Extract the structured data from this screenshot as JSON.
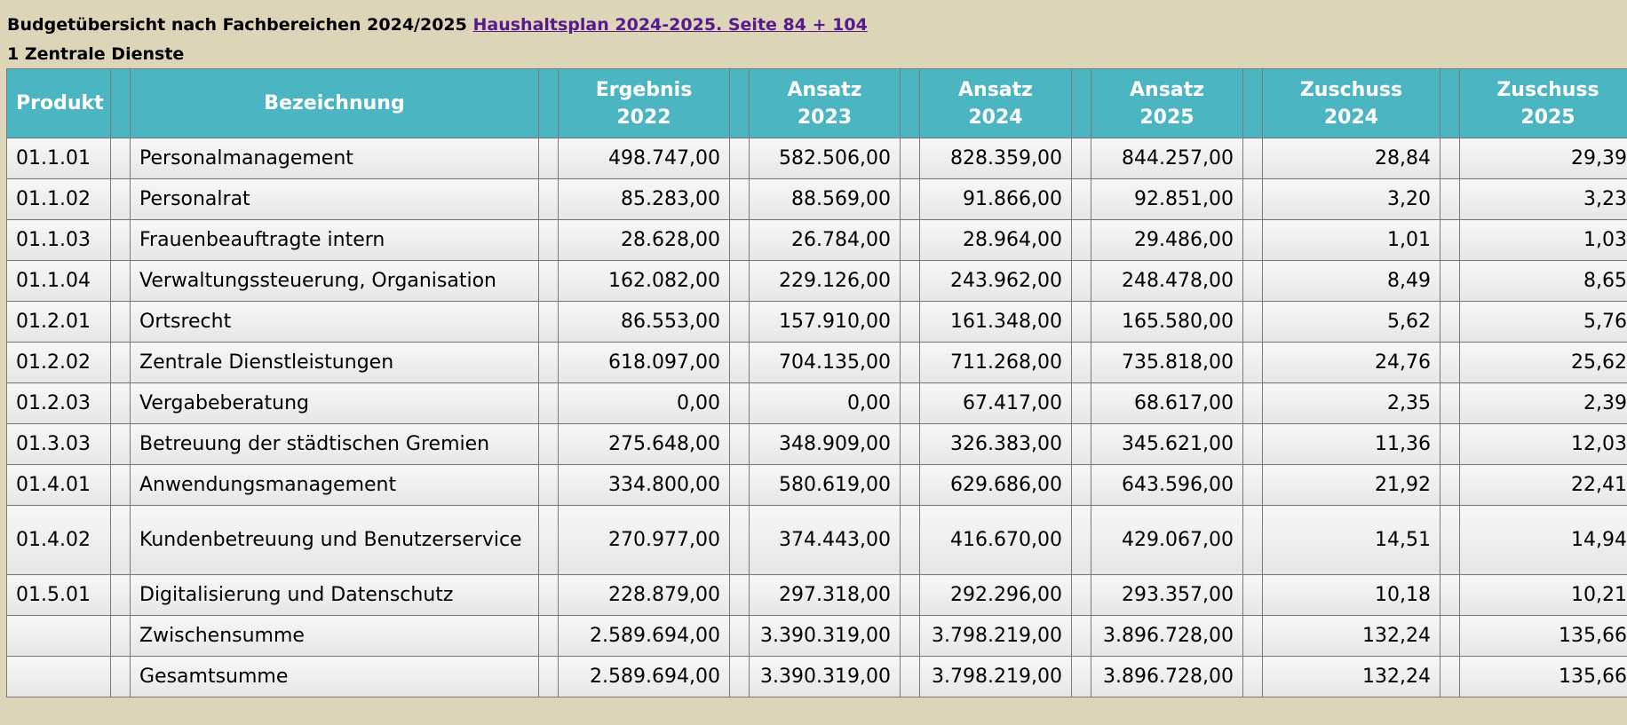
{
  "header": {
    "title": "Budgetübersicht nach Fachbereichen 2024/2025",
    "link": "Haushaltsplan 2024-2025. Seite 84 + 104"
  },
  "subtitle": "1 Zentrale Dienste",
  "table": {
    "columns": {
      "produkt": "Produkt",
      "bezeichnung": "Bezeichnung",
      "ergebnis_2022": [
        "Ergebnis",
        "2022"
      ],
      "ansatz_2023": [
        "Ansatz",
        "2023"
      ],
      "ansatz_2024": [
        "Ansatz",
        "2024"
      ],
      "ansatz_2025": [
        "Ansatz",
        "2025"
      ],
      "zuschuss_2024": [
        "Zuschuss",
        "2024"
      ],
      "zuschuss_2025": [
        "Zuschuss",
        "2025"
      ]
    },
    "rows": [
      {
        "produkt": "01.1.01",
        "bezeichnung": "Personalmanagement",
        "ergebnis_2022": "498.747,00",
        "ansatz_2023": "582.506,00",
        "ansatz_2024": "828.359,00",
        "ansatz_2025": "844.257,00",
        "zuschuss_2024": "28,84",
        "zuschuss_2025": "29,39"
      },
      {
        "produkt": "01.1.02",
        "bezeichnung": "Personalrat",
        "ergebnis_2022": "85.283,00",
        "ansatz_2023": "88.569,00",
        "ansatz_2024": "91.866,00",
        "ansatz_2025": "92.851,00",
        "zuschuss_2024": "3,20",
        "zuschuss_2025": "3,23"
      },
      {
        "produkt": "01.1.03",
        "bezeichnung": "Frauenbeauftragte intern",
        "ergebnis_2022": "28.628,00",
        "ansatz_2023": "26.784,00",
        "ansatz_2024": "28.964,00",
        "ansatz_2025": "29.486,00",
        "zuschuss_2024": "1,01",
        "zuschuss_2025": "1,03"
      },
      {
        "produkt": "01.1.04",
        "bezeichnung": "Verwaltungssteuerung, Organisation",
        "ergebnis_2022": "162.082,00",
        "ansatz_2023": "229.126,00",
        "ansatz_2024": "243.962,00",
        "ansatz_2025": "248.478,00",
        "zuschuss_2024": "8,49",
        "zuschuss_2025": "8,65"
      },
      {
        "produkt": "01.2.01",
        "bezeichnung": "Ortsrecht",
        "ergebnis_2022": "86.553,00",
        "ansatz_2023": "157.910,00",
        "ansatz_2024": "161.348,00",
        "ansatz_2025": "165.580,00",
        "zuschuss_2024": "5,62",
        "zuschuss_2025": "5,76"
      },
      {
        "produkt": "01.2.02",
        "bezeichnung": "Zentrale Dienstleistungen",
        "ergebnis_2022": "618.097,00",
        "ansatz_2023": "704.135,00",
        "ansatz_2024": "711.268,00",
        "ansatz_2025": "735.818,00",
        "zuschuss_2024": "24,76",
        "zuschuss_2025": "25,62"
      },
      {
        "produkt": "01.2.03",
        "bezeichnung": "Vergabeberatung",
        "ergebnis_2022": "0,00",
        "ansatz_2023": "0,00",
        "ansatz_2024": "67.417,00",
        "ansatz_2025": "68.617,00",
        "zuschuss_2024": "2,35",
        "zuschuss_2025": "2,39"
      },
      {
        "produkt": "01.3.03",
        "bezeichnung": "Betreuung der städtischen Gremien",
        "ergebnis_2022": "275.648,00",
        "ansatz_2023": "348.909,00",
        "ansatz_2024": "326.383,00",
        "ansatz_2025": "345.621,00",
        "zuschuss_2024": "11,36",
        "zuschuss_2025": "12,03"
      },
      {
        "produkt": "01.4.01",
        "bezeichnung": "Anwendungsmanagement",
        "ergebnis_2022": "334.800,00",
        "ansatz_2023": "580.619,00",
        "ansatz_2024": "629.686,00",
        "ansatz_2025": "643.596,00",
        "zuschuss_2024": "21,92",
        "zuschuss_2025": "22,41"
      },
      {
        "produkt": "01.4.02",
        "bezeichnung": "Kundenbetreuung und Benutzerservice",
        "ergebnis_2022": "270.977,00",
        "ansatz_2023": "374.443,00",
        "ansatz_2024": "416.670,00",
        "ansatz_2025": "429.067,00",
        "zuschuss_2024": "14,51",
        "zuschuss_2025": "14,94"
      },
      {
        "produkt": "01.5.01",
        "bezeichnung": "Digitalisierung und Datenschutz",
        "ergebnis_2022": "228.879,00",
        "ansatz_2023": "297.318,00",
        "ansatz_2024": "292.296,00",
        "ansatz_2025": "293.357,00",
        "zuschuss_2024": "10,18",
        "zuschuss_2025": "10,21"
      },
      {
        "produkt": "",
        "bezeichnung": "Zwischensumme",
        "ergebnis_2022": "2.589.694,00",
        "ansatz_2023": "3.390.319,00",
        "ansatz_2024": "3.798.219,00",
        "ansatz_2025": "3.896.728,00",
        "zuschuss_2024": "132,24",
        "zuschuss_2025": "135,66"
      },
      {
        "produkt": "",
        "bezeichnung": "Gesamtsumme",
        "ergebnis_2022": "2.589.694,00",
        "ansatz_2023": "3.390.319,00",
        "ansatz_2024": "3.798.219,00",
        "ansatz_2025": "3.896.728,00",
        "zuschuss_2024": "132,24",
        "zuschuss_2025": "135,66"
      }
    ]
  }
}
